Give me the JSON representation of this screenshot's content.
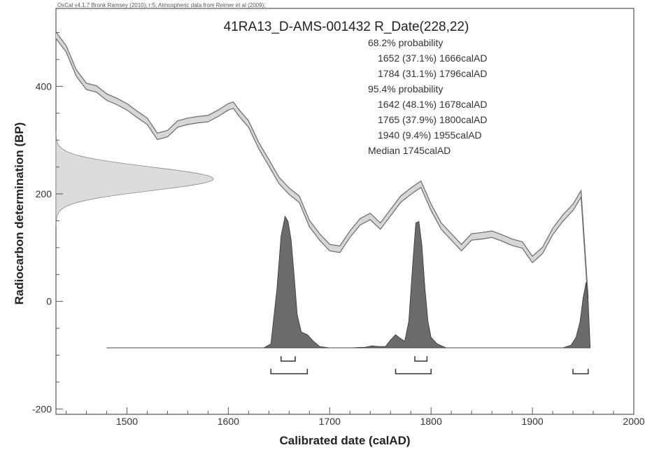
{
  "chart_data": {
    "type": "area",
    "credit": "OxCal v4.1.7 Bronk Ramsey (2010); r:5; Atmospheric data from Reimer et al (2009);",
    "title": "41RA13_D-AMS-001432 R_Date(228,22)",
    "xlabel": "Calibrated date (calAD)",
    "ylabel": "Radiocarbon determination (BP)",
    "xlim": [
      1430,
      2000
    ],
    "ylim": [
      -210,
      545
    ],
    "x_ticks": [
      1500,
      1600,
      1700,
      1800,
      1900,
      2000
    ],
    "y_ticks": [
      -200,
      0,
      200,
      400
    ],
    "grid": false,
    "probability_text": [
      "68.2% probability",
      "1652 (37.1%) 1666calAD",
      "1784 (31.1%) 1796calAD",
      "95.4% probability",
      "1642 (48.1%) 1678calAD",
      "1765 (37.9%) 1800calAD",
      "1940 (9.4%) 1955calAD",
      "Median 1745calAD"
    ],
    "calibration_curve": {
      "x": [
        1430,
        1440,
        1450,
        1460,
        1470,
        1480,
        1490,
        1500,
        1510,
        1520,
        1530,
        1540,
        1550,
        1560,
        1570,
        1580,
        1590,
        1600,
        1605,
        1610,
        1620,
        1630,
        1640,
        1650,
        1660,
        1670,
        1680,
        1690,
        1700,
        1710,
        1720,
        1730,
        1740,
        1750,
        1760,
        1770,
        1780,
        1790,
        1800,
        1810,
        1820,
        1830,
        1840,
        1850,
        1860,
        1870,
        1880,
        1890,
        1900,
        1910,
        1920,
        1930,
        1940,
        1948,
        1955
      ],
      "y": [
        495,
        470,
        425,
        400,
        395,
        380,
        372,
        362,
        348,
        335,
        307,
        312,
        330,
        335,
        338,
        340,
        350,
        362,
        365,
        352,
        330,
        290,
        258,
        225,
        205,
        190,
        145,
        120,
        100,
        97,
        125,
        148,
        158,
        140,
        165,
        190,
        205,
        218,
        175,
        140,
        120,
        100,
        120,
        122,
        125,
        118,
        110,
        105,
        78,
        95,
        130,
        155,
        175,
        200,
        0
      ],
      "band_halfwidth": 6
    },
    "measurement": {
      "mean": 228,
      "sigma": 22
    },
    "posterior": {
      "x": [
        1480,
        1600,
        1635,
        1642,
        1648,
        1652,
        1656,
        1659,
        1662,
        1665,
        1668,
        1672,
        1678,
        1684,
        1690,
        1700,
        1720,
        1735,
        1742,
        1748,
        1755,
        1760,
        1765,
        1770,
        1774,
        1778,
        1782,
        1785,
        1788,
        1791,
        1794,
        1797,
        1800,
        1806,
        1815,
        1900,
        1930,
        1938,
        1943,
        1947,
        1950,
        1953,
        1955,
        1957
      ],
      "y": [
        0,
        0,
        0,
        0.03,
        0.45,
        0.85,
        1.0,
        0.96,
        0.82,
        0.55,
        0.25,
        0.12,
        0.1,
        0.05,
        0.01,
        0,
        0,
        0.005,
        0.015,
        0.01,
        0.01,
        0.06,
        0.1,
        0.07,
        0.05,
        0.2,
        0.65,
        0.95,
        0.96,
        0.78,
        0.45,
        0.2,
        0.08,
        0.03,
        0,
        0,
        0,
        0.02,
        0.08,
        0.2,
        0.38,
        0.5,
        0.35,
        0
      ]
    },
    "ranges_68_2": [
      [
        1652,
        1666
      ],
      [
        1784,
        1796
      ]
    ],
    "ranges_95_4": [
      [
        1642,
        1678
      ],
      [
        1765,
        1800
      ],
      [
        1940,
        1955
      ]
    ],
    "colors": {
      "curve_band": "#d6d6d6",
      "curve_line": "#6a6a6a",
      "measurement_fill": "#dcdcdc",
      "posterior_fill": "#6b6b6b",
      "posterior_line": "#333333",
      "axis": "#555555"
    }
  }
}
